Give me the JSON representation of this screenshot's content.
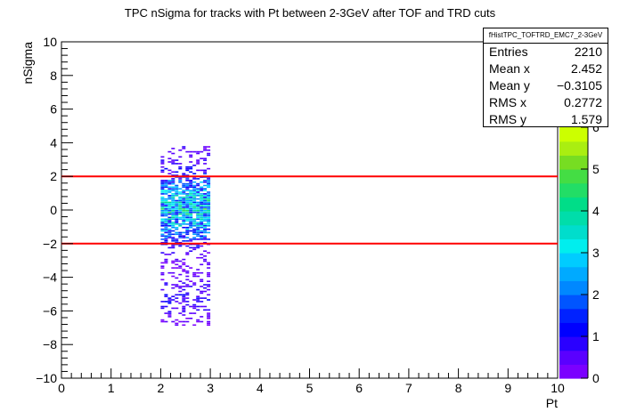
{
  "chart_data": {
    "type": "heatmap",
    "title": "TPC nSigma for tracks with Pt between 2-3GeV after TOF and TRD cuts",
    "xlabel": "Pt",
    "ylabel": "nSigma",
    "xlim": [
      0,
      10
    ],
    "ylim": [
      -10,
      10
    ],
    "x_ticks": [
      "0",
      "1",
      "2",
      "3",
      "4",
      "5",
      "6",
      "7",
      "8",
      "9",
      "10"
    ],
    "y_ticks": [
      "−10",
      "−8",
      "−6",
      "−4",
      "−2",
      "0",
      "2",
      "4",
      "6",
      "8",
      "10"
    ],
    "data_x_range": [
      2.0,
      3.0
    ],
    "data_y_range": [
      -6.8,
      3.8
    ],
    "cut_lines": [
      2,
      -2
    ],
    "cut_line_color": "#ff0000",
    "colorbar": {
      "range": [
        0,
        6
      ],
      "ticks": [
        "0",
        "1",
        "2",
        "3",
        "4",
        "5",
        "6"
      ],
      "palette": [
        "#7b00ff",
        "#5a00ff",
        "#2a00ff",
        "#0000ff",
        "#0022ff",
        "#0055ff",
        "#0088ff",
        "#00aaff",
        "#00ccff",
        "#00eeee",
        "#00ddcc",
        "#00ddaa",
        "#00dd88",
        "#22dd66",
        "#44dd44",
        "#77dd22",
        "#aaee11",
        "#ccff00"
      ]
    },
    "density_profile": [
      {
        "y": 3.8,
        "level": 0.6
      },
      {
        "y": 3.2,
        "level": 0.6
      },
      {
        "y": 2.8,
        "level": 0.8
      },
      {
        "y": 2.4,
        "level": 1.0
      },
      {
        "y": 2.0,
        "level": 1.6
      },
      {
        "y": 1.6,
        "level": 2.2
      },
      {
        "y": 1.2,
        "level": 2.8
      },
      {
        "y": 0.8,
        "level": 3.2
      },
      {
        "y": 0.4,
        "level": 3.6
      },
      {
        "y": 0.0,
        "level": 3.8
      },
      {
        "y": -0.4,
        "level": 3.5
      },
      {
        "y": -0.8,
        "level": 3.0
      },
      {
        "y": -1.2,
        "level": 2.5
      },
      {
        "y": -1.6,
        "level": 2.0
      },
      {
        "y": -2.0,
        "level": 1.3
      },
      {
        "y": -2.4,
        "level": 0.8
      },
      {
        "y": -2.8,
        "level": 0.6
      },
      {
        "y": -3.4,
        "level": 0.4
      },
      {
        "y": -4.0,
        "level": 0.5
      },
      {
        "y": -4.6,
        "level": 0.8
      },
      {
        "y": -5.2,
        "level": 1.0
      },
      {
        "y": -5.8,
        "level": 0.8
      },
      {
        "y": -6.4,
        "level": 0.5
      },
      {
        "y": -6.8,
        "level": 0.3
      }
    ]
  },
  "stats": {
    "name": "fHistTPC_TOFTRD_EMC7_2-3GeV",
    "rows": [
      {
        "label": "Entries",
        "value": "2210"
      },
      {
        "label": "Mean x",
        "value": "2.452"
      },
      {
        "label": "Mean y",
        "value": "−0.3105"
      },
      {
        "label": "RMS x",
        "value": "0.2772"
      },
      {
        "label": "RMS y",
        "value": "1.579"
      }
    ]
  }
}
